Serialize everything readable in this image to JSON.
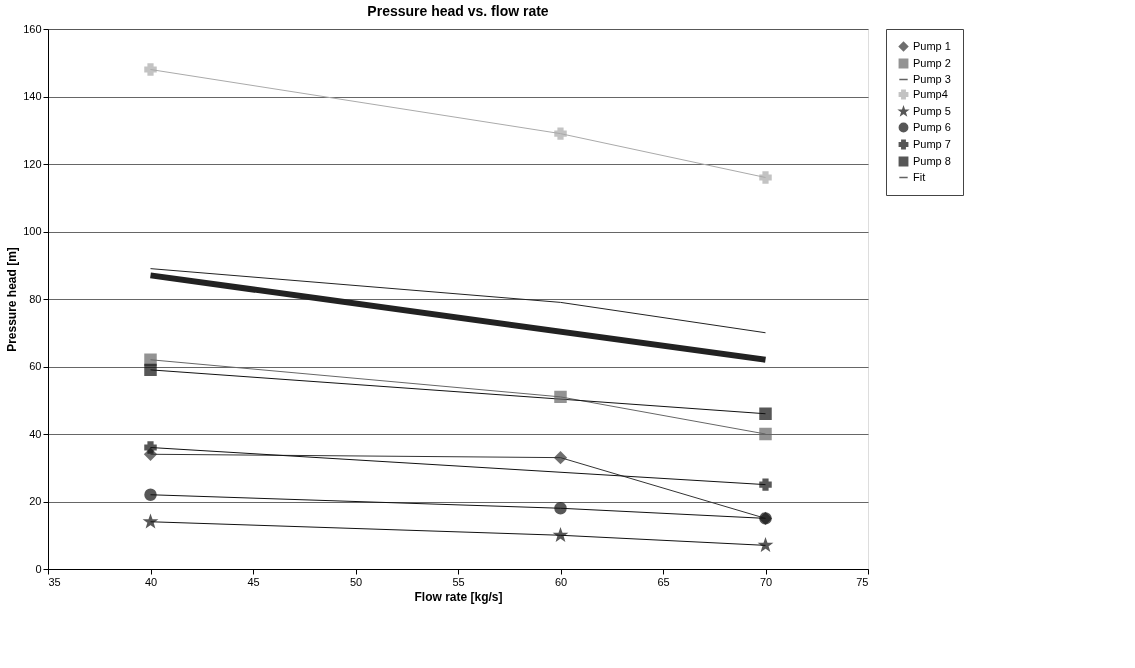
{
  "chart_data": {
    "type": "line",
    "title": "Pressure head vs. flow rate",
    "xlabel": "Flow rate  [kg/s]",
    "ylabel": "Pressure head  [m]",
    "x": [
      40,
      60,
      70
    ],
    "series": [
      {
        "name": "Pump 1",
        "color": "#333333",
        "marker": "diamond",
        "values": [
          34,
          33,
          15
        ]
      },
      {
        "name": "Pump 2",
        "color": "#666666",
        "marker": "square",
        "values": [
          62,
          51,
          40
        ]
      },
      {
        "name": "Pump 3",
        "color": "#222222",
        "marker": "none",
        "values": [
          89,
          79,
          70
        ]
      },
      {
        "name": "Pump4",
        "color": "#aaaaaa",
        "marker": "cross",
        "values": [
          148,
          129,
          116
        ]
      },
      {
        "name": "Pump 5",
        "color": "#111111",
        "marker": "star",
        "values": [
          14,
          10,
          7
        ]
      },
      {
        "name": "Pump 6",
        "color": "#111111",
        "marker": "circle",
        "values": [
          22,
          18,
          15
        ]
      },
      {
        "name": "Pump 7",
        "color": "#111111",
        "marker": "cross",
        "values": [
          36,
          null,
          25
        ]
      },
      {
        "name": "Pump 8",
        "color": "#111111",
        "marker": "square",
        "values": [
          59,
          null,
          46
        ]
      },
      {
        "name": "Fit",
        "color": "#222222",
        "marker": "none",
        "values": [
          87,
          null,
          62
        ]
      }
    ],
    "xlim": [
      35,
      75
    ],
    "xticks": [
      35,
      40,
      45,
      50,
      55,
      60,
      65,
      70,
      75
    ],
    "ylim": [
      0,
      160
    ],
    "yticks": [
      0,
      20,
      40,
      60,
      80,
      100,
      120,
      140,
      160
    ],
    "grid": "y",
    "legend": "right"
  }
}
